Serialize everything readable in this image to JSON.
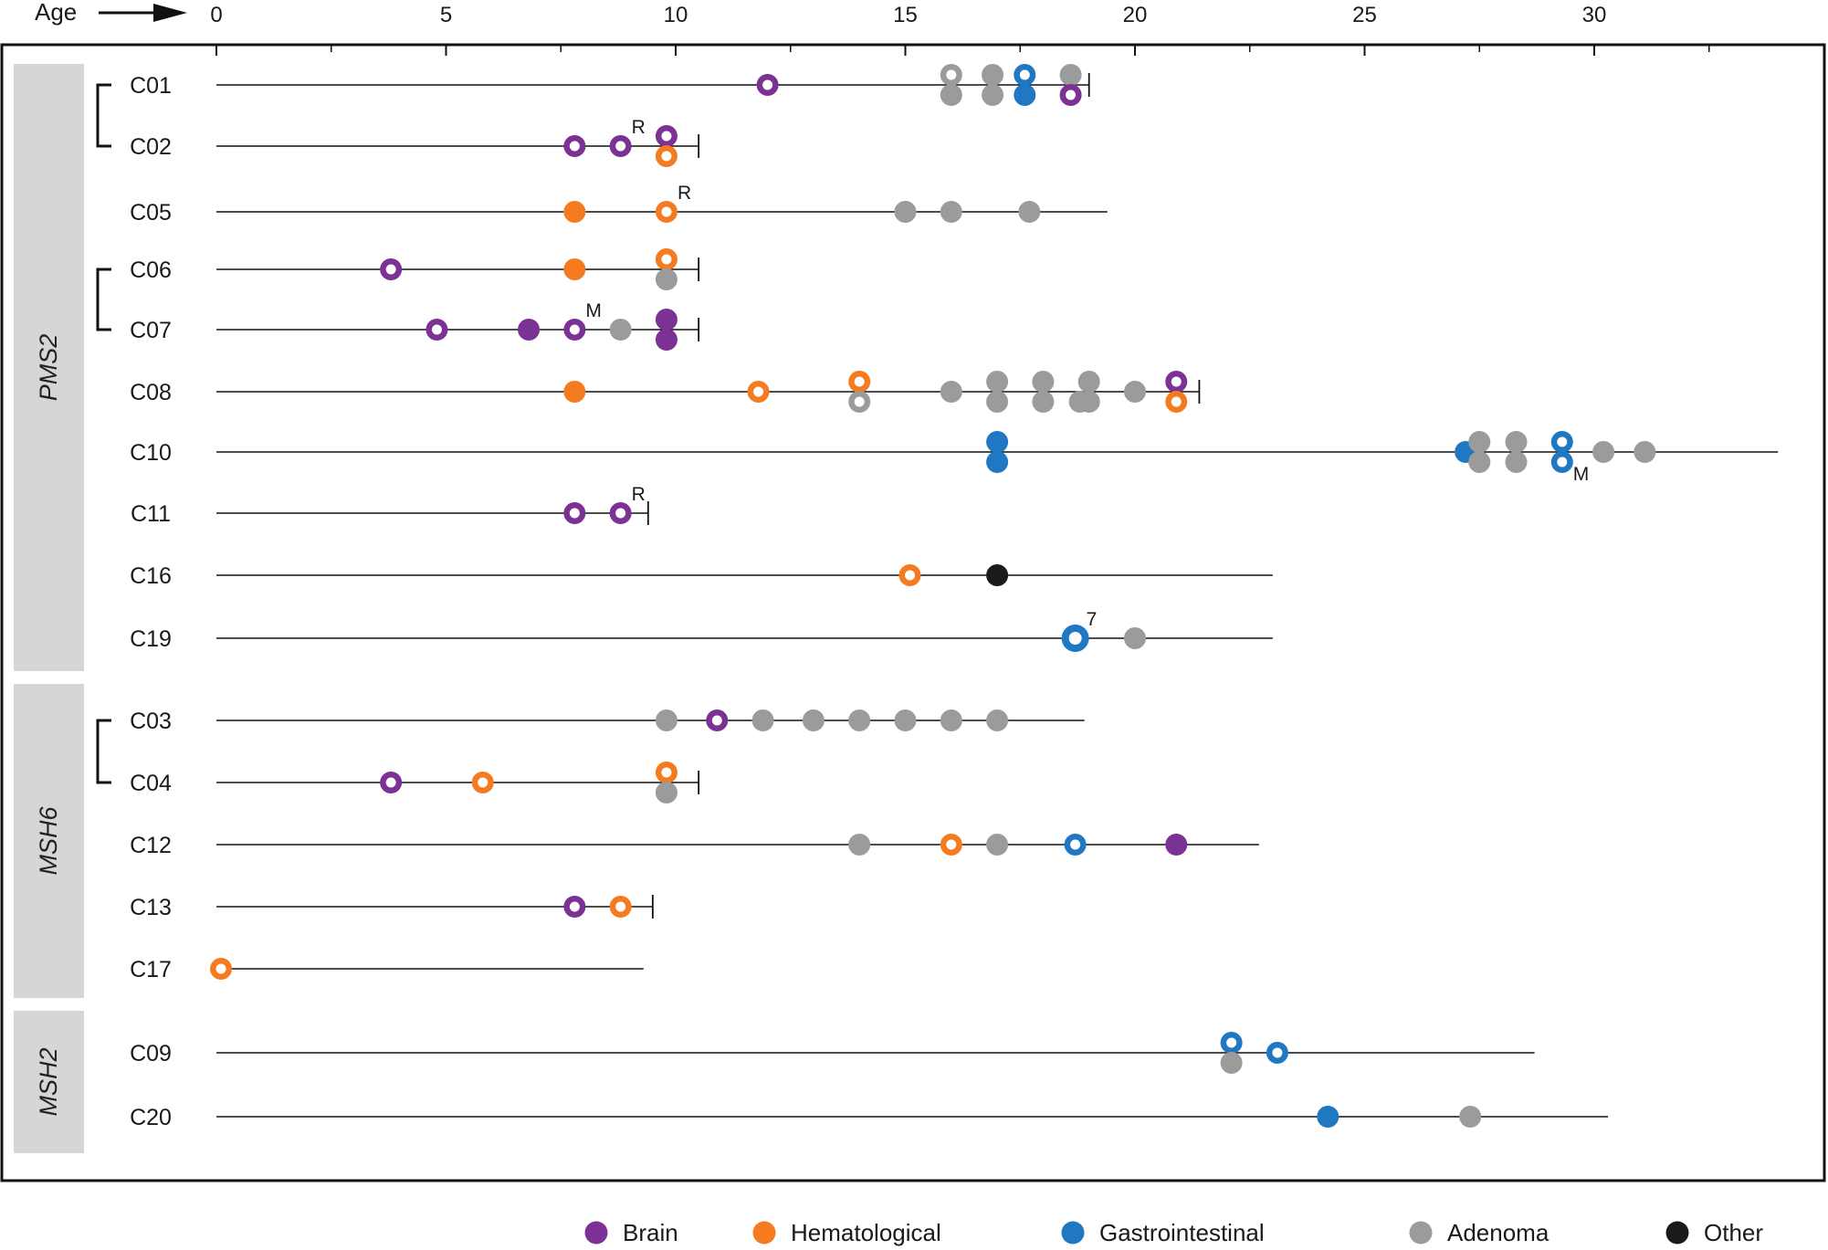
{
  "chart_data": {
    "type": "scatter",
    "axis": {
      "label": "Age",
      "range": [
        0,
        34
      ],
      "ticks": [
        0,
        5,
        10,
        15,
        20,
        25,
        30
      ],
      "minor_ticks": [
        2.5,
        7.5,
        12.5,
        17.5,
        22.5,
        27.5,
        32.5
      ],
      "position": "top"
    },
    "groups": [
      {
        "name": "PMS2",
        "patients": [
          "C01",
          "C02",
          "C05",
          "C06",
          "C07",
          "C08",
          "C10",
          "C11",
          "C16",
          "C19"
        ]
      },
      {
        "name": "MSH6",
        "patients": [
          "C03",
          "C04",
          "C12",
          "C13",
          "C17"
        ]
      },
      {
        "name": "MSH2",
        "patients": [
          "C09",
          "C20"
        ]
      }
    ],
    "sibling_pairs": [
      [
        "C01",
        "C02"
      ],
      [
        "C06",
        "C07"
      ],
      [
        "C03",
        "C04"
      ]
    ],
    "categories": [
      {
        "key": "brain",
        "name": "Brain",
        "color": "#7b3294"
      },
      {
        "key": "hem",
        "name": "Hematological",
        "color": "#f47b20"
      },
      {
        "key": "gi",
        "name": "Gastrointestinal",
        "color": "#1f78c1"
      },
      {
        "key": "adenoma",
        "name": "Adenoma",
        "color": "#9b9b9b"
      },
      {
        "key": "other",
        "name": "Other",
        "color": "#1a1a1a"
      }
    ],
    "patients": [
      {
        "id": "C01",
        "end": 19.0,
        "deceased": true,
        "events": [
          {
            "age": 12.0,
            "cat": "brain",
            "hollow": true
          },
          {
            "age": 16.0,
            "cat": "adenoma",
            "hollow": true,
            "stack": 1
          },
          {
            "age": 16.0,
            "cat": "adenoma",
            "stack": -1
          },
          {
            "age": 16.9,
            "cat": "adenoma",
            "stack": 1
          },
          {
            "age": 16.9,
            "cat": "adenoma",
            "stack": -1
          },
          {
            "age": 17.6,
            "cat": "gi",
            "hollow": true,
            "stack": 1
          },
          {
            "age": 17.6,
            "cat": "gi",
            "stack": -1
          },
          {
            "age": 18.6,
            "cat": "adenoma",
            "stack": 1
          },
          {
            "age": 18.6,
            "cat": "brain",
            "hollow": true,
            "stack": -1
          }
        ]
      },
      {
        "id": "C02",
        "end": 10.5,
        "deceased": true,
        "events": [
          {
            "age": 7.8,
            "cat": "brain",
            "hollow": true
          },
          {
            "age": 8.8,
            "cat": "brain",
            "hollow": true,
            "mark": "R"
          },
          {
            "age": 9.8,
            "cat": "brain",
            "hollow": true,
            "stack": 1
          },
          {
            "age": 9.8,
            "cat": "hem",
            "hollow": true,
            "stack": -1
          }
        ]
      },
      {
        "id": "C05",
        "end": 19.4,
        "deceased": false,
        "events": [
          {
            "age": 7.8,
            "cat": "hem"
          },
          {
            "age": 9.8,
            "cat": "hem",
            "hollow": true,
            "mark": "R"
          },
          {
            "age": 15.0,
            "cat": "adenoma"
          },
          {
            "age": 16.0,
            "cat": "adenoma"
          },
          {
            "age": 17.7,
            "cat": "adenoma"
          }
        ]
      },
      {
        "id": "C06",
        "end": 10.5,
        "deceased": true,
        "events": [
          {
            "age": 3.8,
            "cat": "brain",
            "hollow": true
          },
          {
            "age": 7.8,
            "cat": "hem"
          },
          {
            "age": 9.8,
            "cat": "hem",
            "hollow": true,
            "stack": 1
          },
          {
            "age": 9.8,
            "cat": "adenoma",
            "stack": -1
          }
        ]
      },
      {
        "id": "C07",
        "end": 10.5,
        "deceased": true,
        "events": [
          {
            "age": 4.8,
            "cat": "brain",
            "hollow": true
          },
          {
            "age": 6.8,
            "cat": "brain"
          },
          {
            "age": 7.8,
            "cat": "brain",
            "hollow": true,
            "mark": "M"
          },
          {
            "age": 8.8,
            "cat": "adenoma"
          },
          {
            "age": 9.8,
            "cat": "brain",
            "stack": 1
          },
          {
            "age": 9.8,
            "cat": "brain",
            "stack": -1
          }
        ]
      },
      {
        "id": "C08",
        "end": 21.4,
        "deceased": true,
        "events": [
          {
            "age": 7.8,
            "cat": "hem"
          },
          {
            "age": 11.8,
            "cat": "hem",
            "hollow": true
          },
          {
            "age": 14.0,
            "cat": "hem",
            "hollow": true,
            "stack": 1
          },
          {
            "age": 14.0,
            "cat": "adenoma",
            "hollow": true,
            "stack": -1
          },
          {
            "age": 16.0,
            "cat": "adenoma"
          },
          {
            "age": 17.0,
            "cat": "adenoma",
            "stack": 1
          },
          {
            "age": 17.0,
            "cat": "adenoma",
            "stack": -1
          },
          {
            "age": 18.0,
            "cat": "adenoma",
            "stack": 1
          },
          {
            "age": 18.0,
            "cat": "adenoma",
            "stack": -1
          },
          {
            "age": 18.8,
            "cat": "adenoma",
            "stack": -1
          },
          {
            "age": 19.0,
            "cat": "adenoma",
            "stack": 1
          },
          {
            "age": 19.0,
            "cat": "adenoma",
            "stack": -1
          },
          {
            "age": 20.0,
            "cat": "adenoma"
          },
          {
            "age": 20.9,
            "cat": "brain",
            "hollow": true,
            "stack": 1
          },
          {
            "age": 20.9,
            "cat": "hem",
            "hollow": true,
            "stack": -1
          }
        ]
      },
      {
        "id": "C10",
        "end": 34.0,
        "deceased": false,
        "events": [
          {
            "age": 17.0,
            "cat": "gi",
            "stack": 1
          },
          {
            "age": 17.0,
            "cat": "gi",
            "stack": -1
          },
          {
            "age": 27.2,
            "cat": "gi"
          },
          {
            "age": 27.5,
            "cat": "adenoma",
            "stack": 1
          },
          {
            "age": 27.5,
            "cat": "adenoma",
            "stack": -1
          },
          {
            "age": 28.3,
            "cat": "adenoma",
            "stack": 1
          },
          {
            "age": 28.3,
            "cat": "adenoma",
            "stack": -1
          },
          {
            "age": 29.3,
            "cat": "gi",
            "hollow": true,
            "stack": 1
          },
          {
            "age": 29.3,
            "cat": "gi",
            "hollow": true,
            "stack": -1,
            "mark": "M"
          },
          {
            "age": 30.2,
            "cat": "adenoma"
          },
          {
            "age": 31.1,
            "cat": "adenoma"
          }
        ]
      },
      {
        "id": "C11",
        "end": 9.4,
        "deceased": true,
        "events": [
          {
            "age": 7.8,
            "cat": "brain",
            "hollow": true
          },
          {
            "age": 8.8,
            "cat": "brain",
            "hollow": true,
            "mark": "R"
          }
        ]
      },
      {
        "id": "C16",
        "end": 23.0,
        "deceased": false,
        "events": [
          {
            "age": 15.1,
            "cat": "hem",
            "hollow": true
          },
          {
            "age": 17.0,
            "cat": "other"
          }
        ]
      },
      {
        "id": "C19",
        "end": 23.0,
        "deceased": false,
        "events": [
          {
            "age": 18.7,
            "cat": "gi",
            "hollow": true,
            "big": true,
            "mark": "7"
          },
          {
            "age": 20.0,
            "cat": "adenoma"
          }
        ]
      },
      {
        "id": "C03",
        "end": 18.9,
        "deceased": false,
        "events": [
          {
            "age": 9.8,
            "cat": "adenoma"
          },
          {
            "age": 10.9,
            "cat": "brain",
            "hollow": true
          },
          {
            "age": 11.9,
            "cat": "adenoma"
          },
          {
            "age": 13.0,
            "cat": "adenoma"
          },
          {
            "age": 14.0,
            "cat": "adenoma"
          },
          {
            "age": 15.0,
            "cat": "adenoma"
          },
          {
            "age": 16.0,
            "cat": "adenoma"
          },
          {
            "age": 17.0,
            "cat": "adenoma"
          }
        ]
      },
      {
        "id": "C04",
        "end": 10.5,
        "deceased": true,
        "events": [
          {
            "age": 3.8,
            "cat": "brain",
            "hollow": true
          },
          {
            "age": 5.8,
            "cat": "hem",
            "hollow": true
          },
          {
            "age": 9.8,
            "cat": "hem",
            "hollow": true,
            "stack": 1
          },
          {
            "age": 9.8,
            "cat": "adenoma",
            "stack": -1
          }
        ]
      },
      {
        "id": "C12",
        "end": 22.7,
        "deceased": false,
        "events": [
          {
            "age": 14.0,
            "cat": "adenoma"
          },
          {
            "age": 16.0,
            "cat": "hem",
            "hollow": true
          },
          {
            "age": 17.0,
            "cat": "adenoma"
          },
          {
            "age": 18.7,
            "cat": "gi",
            "hollow": true
          },
          {
            "age": 20.9,
            "cat": "brain"
          }
        ]
      },
      {
        "id": "C13",
        "end": 9.5,
        "deceased": true,
        "events": [
          {
            "age": 7.8,
            "cat": "brain",
            "hollow": true
          },
          {
            "age": 8.8,
            "cat": "hem",
            "hollow": true
          }
        ]
      },
      {
        "id": "C17",
        "end": 9.3,
        "deceased": false,
        "events": [
          {
            "age": 0.1,
            "cat": "hem",
            "hollow": true
          }
        ]
      },
      {
        "id": "C09",
        "end": 28.7,
        "deceased": false,
        "events": [
          {
            "age": 22.1,
            "cat": "gi",
            "hollow": true,
            "stack": 1
          },
          {
            "age": 22.1,
            "cat": "adenoma",
            "stack": -1
          },
          {
            "age": 23.1,
            "cat": "gi",
            "hollow": true
          }
        ]
      },
      {
        "id": "C20",
        "end": 30.3,
        "deceased": false,
        "events": [
          {
            "age": 24.2,
            "cat": "gi"
          },
          {
            "age": 27.3,
            "cat": "adenoma"
          }
        ]
      }
    ]
  }
}
